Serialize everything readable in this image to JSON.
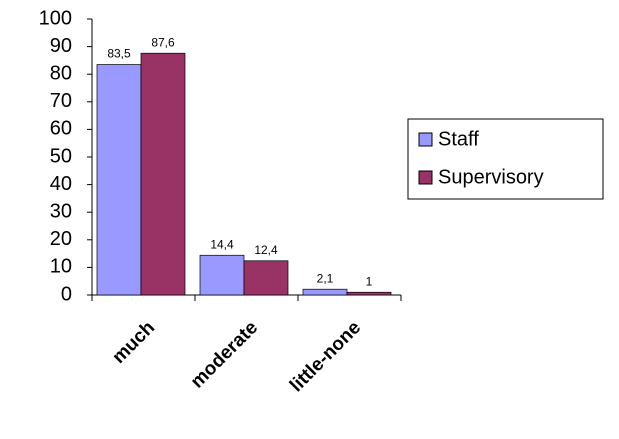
{
  "chart_data": {
    "type": "bar",
    "categories": [
      "much",
      "moderate",
      "little-none"
    ],
    "series": [
      {
        "name": "Staff",
        "color": "#9999ff",
        "values": [
          83.5,
          14.4,
          2.1
        ],
        "value_labels": [
          "83,5",
          "14,4",
          "2,1"
        ]
      },
      {
        "name": "Supervisory",
        "color": "#993366",
        "values": [
          87.6,
          12.4,
          1
        ],
        "value_labels": [
          "87,6",
          "12,4",
          "1"
        ]
      }
    ],
    "ylim": [
      0,
      100
    ],
    "yticks": [
      0,
      10,
      20,
      30,
      40,
      50,
      60,
      70,
      80,
      90,
      100
    ],
    "legend": "right"
  }
}
